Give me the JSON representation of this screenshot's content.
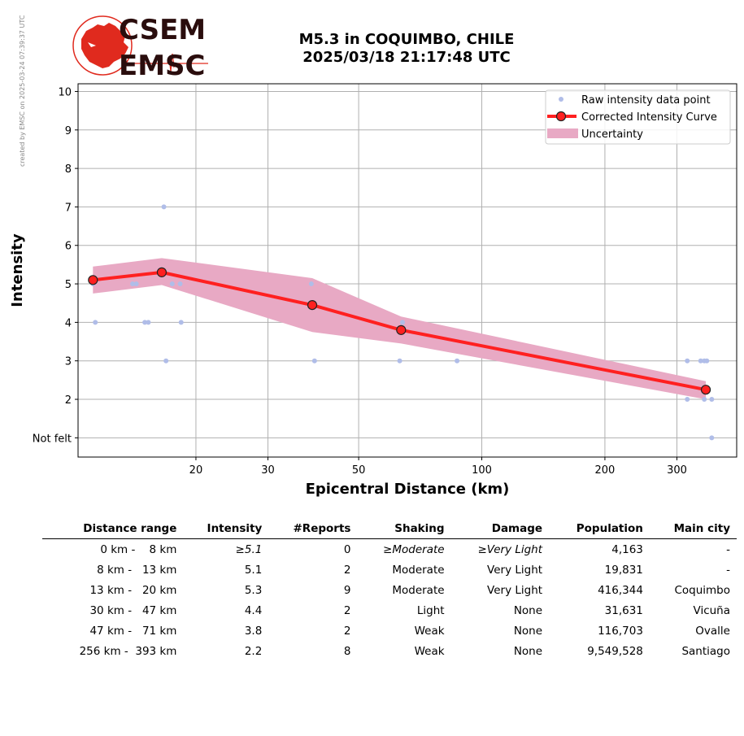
{
  "credit_text": "created by EMSC on 2025-03-24 07:39:37 UTC",
  "logo": {
    "line1": "CSEM",
    "line2": "EMSC"
  },
  "title": {
    "line1": "M5.3 in COQUIMBO, CHILE",
    "line2": "2025/03/18 21:17:48 UTC"
  },
  "colors": {
    "curve": "#ff2020",
    "band": "#e8a9c4",
    "raw": "#b0bde8",
    "logo_red": "#e02a1e",
    "logo_dark": "#2a0d0d"
  },
  "chart_data": {
    "type": "line",
    "x_scale": "log",
    "xlabel": "Epicentral Distance (km)",
    "ylabel": "Intensity",
    "xlim": [
      10.3,
      420
    ],
    "ylim": [
      0.5,
      10.2
    ],
    "x_ticks": [
      20,
      30,
      50,
      100,
      200,
      300
    ],
    "x_tick_labels": [
      "20",
      "30",
      "50",
      "100",
      "200",
      "300"
    ],
    "y_ticks": [
      1,
      2,
      3,
      4,
      5,
      6,
      7,
      8,
      9,
      10
    ],
    "y_tick_labels": [
      "Not felt",
      "2",
      "3",
      "4",
      "5",
      "6",
      "7",
      "8",
      "9",
      "10"
    ],
    "grid": true,
    "legend_position": "top-right",
    "legend": [
      "Raw intensity data point",
      "Corrected Intensity Curve",
      "Uncertainty"
    ],
    "corrected_curve": {
      "x": [
        11.2,
        16.5,
        38.5,
        63.5,
        353
      ],
      "y": [
        5.1,
        5.3,
        4.45,
        3.8,
        2.25
      ]
    },
    "uncertainty": {
      "x": [
        11.2,
        16.5,
        38.5,
        63.5,
        353
      ],
      "upper": [
        5.45,
        5.67,
        5.15,
        4.15,
        2.47
      ],
      "lower": [
        4.75,
        4.97,
        3.75,
        3.45,
        2.0
      ]
    },
    "raw_points": {
      "x": [
        11.2,
        11.35,
        14.0,
        14.3,
        15.0,
        15.3,
        16.7,
        16.9,
        17.5,
        18.3,
        18.4,
        38.3,
        39.0,
        63.0,
        64.0,
        87.0,
        318,
        318,
        343,
        350,
        350,
        355,
        365,
        365
      ],
      "y": [
        5,
        4,
        5,
        5,
        4,
        4,
        7,
        3,
        5,
        5,
        4,
        5,
        3,
        3,
        4,
        3,
        3,
        2,
        3,
        3,
        2,
        3,
        2,
        1
      ]
    }
  },
  "table": {
    "headers": [
      "Distance range",
      "Intensity",
      "#Reports",
      "Shaking",
      "Damage",
      "Population",
      "Main city"
    ],
    "rows": [
      [
        "0 km -    8 km",
        "≥5.1",
        "0",
        "≥Moderate",
        "≥Very Light",
        "4,163",
        "-"
      ],
      [
        "8 km -   13 km",
        "5.1",
        "2",
        "Moderate",
        "Very Light",
        "19,831",
        "-"
      ],
      [
        "13 km -   20 km",
        "5.3",
        "9",
        "Moderate",
        "Very Light",
        "416,344",
        "Coquimbo"
      ],
      [
        "30 km -   47 km",
        "4.4",
        "2",
        "Light",
        "None",
        "31,631",
        "Vicuña"
      ],
      [
        "47 km -   71 km",
        "3.8",
        "2",
        "Weak",
        "None",
        "116,703",
        "Ovalle"
      ],
      [
        "256 km -  393 km",
        "2.2",
        "8",
        "Weak",
        "None",
        "9,549,528",
        "Santiago"
      ]
    ]
  }
}
